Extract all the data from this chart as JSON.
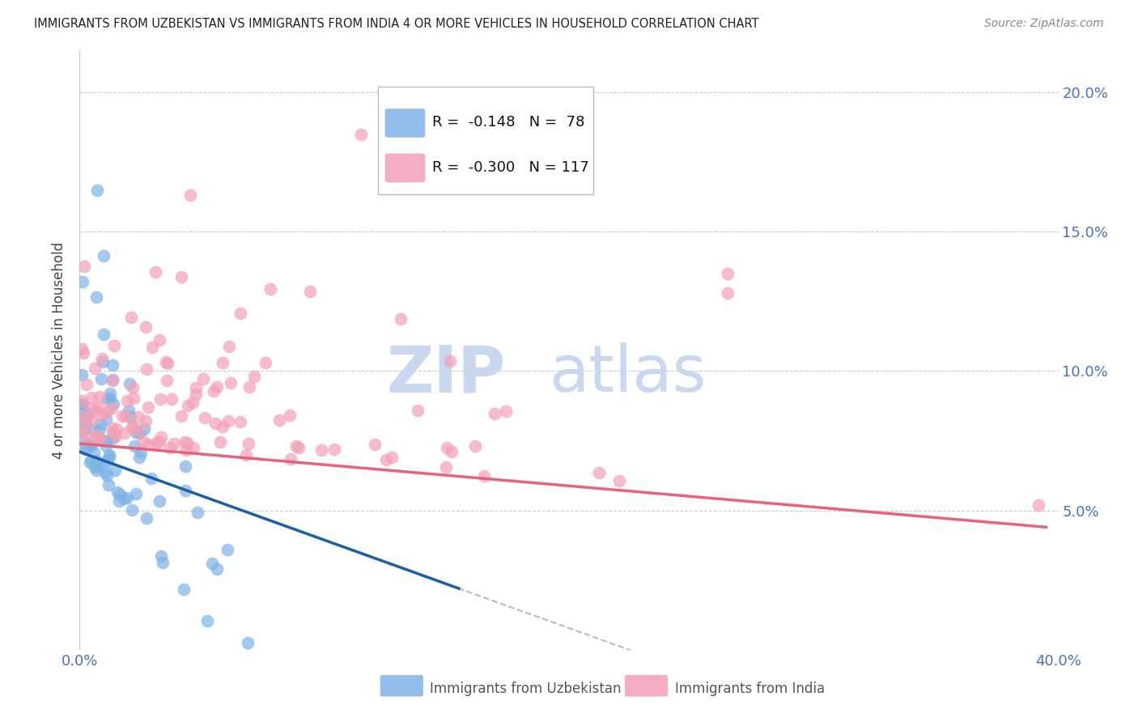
{
  "title": "IMMIGRANTS FROM UZBEKISTAN VS IMMIGRANTS FROM INDIA 4 OR MORE VEHICLES IN HOUSEHOLD CORRELATION CHART",
  "source": "Source: ZipAtlas.com",
  "ylabel": "4 or more Vehicles in Household",
  "xlim": [
    0.0,
    0.4
  ],
  "ylim": [
    0.0,
    0.215
  ],
  "yticks": [
    0.0,
    0.05,
    0.1,
    0.15,
    0.2
  ],
  "ytick_labels": [
    "",
    "5.0%",
    "10.0%",
    "15.0%",
    "20.0%"
  ],
  "xticks": [
    0.0,
    0.1,
    0.2,
    0.3,
    0.4
  ],
  "xtick_labels": [
    "0.0%",
    "",
    "",
    "",
    "40.0%"
  ],
  "color_uzbekistan": "#7EB3E8",
  "color_india": "#F4A0B5",
  "color_uzbekistan_line": "#1A5FA8",
  "color_india_line": "#E8637A",
  "title_color": "#222222",
  "axis_label_color": "#4472C4",
  "watermark_zip_color": "#C8D8F0",
  "watermark_atlas_color": "#C8D8F0",
  "grid_color": "#CCCCCC",
  "border_color": "#CCCCCC"
}
